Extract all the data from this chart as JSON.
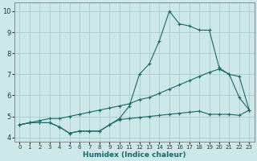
{
  "xlabel": "Humidex (Indice chaleur)",
  "bg_color": "#cce8e8",
  "grid_color": "#aacccc",
  "line_color": "#1a6868",
  "xlim": [
    -0.5,
    23.5
  ],
  "ylim": [
    3.8,
    10.4
  ],
  "xticks": [
    0,
    1,
    2,
    3,
    4,
    5,
    6,
    7,
    8,
    9,
    10,
    11,
    12,
    13,
    14,
    15,
    16,
    17,
    18,
    19,
    20,
    21,
    22,
    23
  ],
  "yticks": [
    4,
    5,
    6,
    7,
    8,
    9,
    10
  ],
  "series1_x": [
    0,
    1,
    2,
    3,
    4,
    5,
    6,
    7,
    8,
    9,
    10,
    11,
    12,
    13,
    14,
    15,
    16,
    17,
    18,
    19,
    20,
    21,
    22,
    23
  ],
  "series1_y": [
    4.6,
    4.7,
    4.7,
    4.7,
    4.5,
    4.2,
    4.3,
    4.3,
    4.3,
    4.6,
    4.9,
    5.5,
    7.0,
    7.5,
    8.6,
    10.0,
    9.4,
    9.3,
    9.1,
    9.1,
    7.3,
    7.0,
    5.9,
    5.3
  ],
  "series2_x": [
    0,
    1,
    2,
    3,
    4,
    5,
    6,
    7,
    8,
    9,
    10,
    11,
    12,
    13,
    14,
    15,
    16,
    17,
    18,
    19,
    20,
    21,
    22,
    23
  ],
  "series2_y": [
    4.6,
    4.7,
    4.8,
    4.9,
    4.9,
    5.0,
    5.1,
    5.2,
    5.3,
    5.4,
    5.5,
    5.6,
    5.8,
    5.9,
    6.1,
    6.3,
    6.5,
    6.7,
    6.9,
    7.1,
    7.25,
    7.0,
    6.9,
    5.3
  ],
  "series3_x": [
    0,
    1,
    2,
    3,
    4,
    5,
    6,
    7,
    8,
    9,
    10,
    11,
    12,
    13,
    14,
    15,
    16,
    17,
    18,
    19,
    20,
    21,
    22,
    23
  ],
  "series3_y": [
    4.6,
    4.7,
    4.7,
    4.7,
    4.5,
    4.2,
    4.3,
    4.3,
    4.3,
    4.6,
    4.85,
    4.9,
    4.95,
    5.0,
    5.05,
    5.1,
    5.15,
    5.2,
    5.25,
    5.1,
    5.1,
    5.1,
    5.05,
    5.3
  ]
}
